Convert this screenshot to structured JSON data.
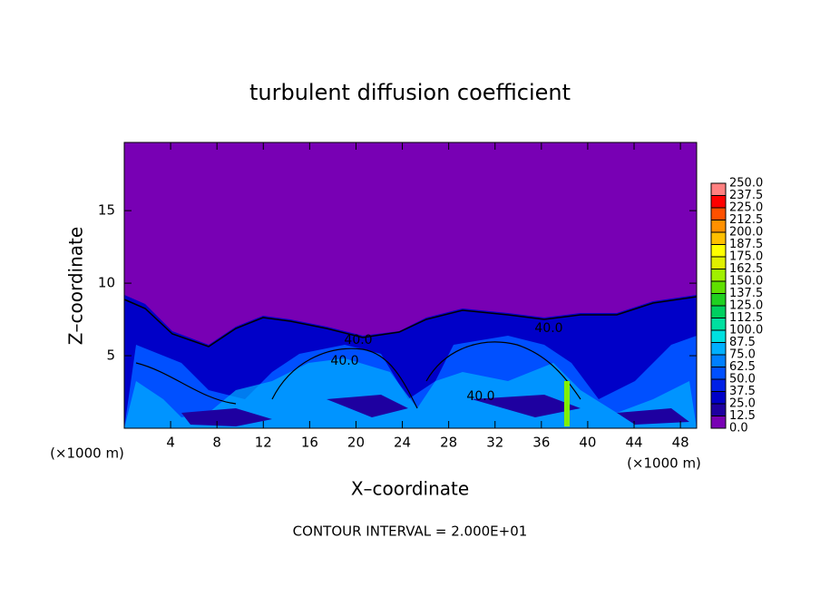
{
  "chart_data": {
    "type": "contour",
    "title": "turbulent diffusion coefficient",
    "x_label": "X–coordinate",
    "y_label": "Z–coordinate",
    "x_unit": "(×1000 m)",
    "x_unit_right": "(×1000 m)",
    "footer": "CONTOUR INTERVAL = 2.000E+01",
    "contour_labels": [
      "40.0",
      "40.0",
      "40.0",
      "40.0"
    ],
    "xlim": [
      0,
      49.4
    ],
    "ylim": [
      0,
      19.7
    ],
    "xticks": [
      4,
      8,
      12,
      16,
      20,
      24,
      28,
      32,
      36,
      40,
      44,
      48
    ],
    "yticks": [
      5,
      10,
      15
    ],
    "colorbar": {
      "levels": [
        {
          "value": 0,
          "label": "0.0"
        },
        {
          "value": 12.5,
          "label": "12.5"
        },
        {
          "value": 25,
          "label": "25.0"
        },
        {
          "value": 37.5,
          "label": "37.5"
        },
        {
          "value": 50,
          "label": "50.0"
        },
        {
          "value": 62.5,
          "label": "62.5"
        },
        {
          "value": 75,
          "label": "75.0"
        },
        {
          "value": 87.5,
          "label": "87.5"
        },
        {
          "value": 100,
          "label": "100.0"
        },
        {
          "value": 112.5,
          "label": "112.5"
        },
        {
          "value": 125,
          "label": "125.0"
        },
        {
          "value": 137.5,
          "label": "137.5"
        },
        {
          "value": 150,
          "label": "150.0"
        },
        {
          "value": 162.5,
          "label": "162.5"
        },
        {
          "value": 175,
          "label": "175.0"
        },
        {
          "value": 187.5,
          "label": "187.5"
        },
        {
          "value": 200,
          "label": "200.0"
        },
        {
          "value": 212.5,
          "label": "212.5"
        },
        {
          "value": 225,
          "label": "225.0"
        },
        {
          "value": 237.5,
          "label": "237.5"
        },
        {
          "value": 250,
          "label": "250.0"
        }
      ],
      "colors": [
        "#7800b4",
        "#1e00a0",
        "#0000c8",
        "#0020e6",
        "#0050ff",
        "#0080ff",
        "#00b0ff",
        "#00e0e0",
        "#00e0a0",
        "#00d060",
        "#20d020",
        "#60e000",
        "#a0f000",
        "#e0f000",
        "#ffff00",
        "#ffc000",
        "#ff9000",
        "#ff5000",
        "#ff0000",
        "#ff8080"
      ]
    }
  }
}
